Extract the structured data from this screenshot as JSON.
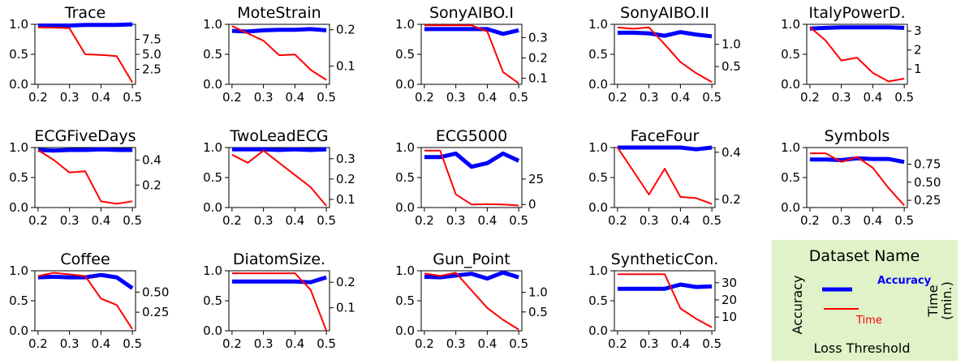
{
  "chart_data": [
    {
      "type": "line",
      "title": "Trace",
      "x": [
        0.2,
        0.25,
        0.3,
        0.35,
        0.4,
        0.45,
        0.5
      ],
      "xticks": [
        "0.2",
        "0.3",
        "0.4",
        "0.5"
      ],
      "xlim": [
        0.19,
        0.51
      ],
      "yticks_left": [
        "0.0",
        "0.5",
        "1.0"
      ],
      "ylim_left": [
        0,
        1
      ],
      "yticks_right": [
        "2.5",
        "5.0",
        "7.5"
      ],
      "ylim_right": [
        0,
        10
      ],
      "series": [
        {
          "name": "Accuracy",
          "axis": "left",
          "color": "#0000ff",
          "values": [
            0.98,
            0.98,
            0.98,
            0.99,
            0.99,
            0.99,
            1.0
          ]
        },
        {
          "name": "Time",
          "axis": "right",
          "color": "#ff0000",
          "values": [
            9.5,
            9.45,
            9.35,
            5.0,
            4.9,
            4.7,
            0.3
          ]
        }
      ]
    },
    {
      "type": "line",
      "title": "MoteStrain",
      "x": [
        0.2,
        0.25,
        0.3,
        0.35,
        0.4,
        0.45,
        0.5
      ],
      "xticks": [
        "0.2",
        "0.3",
        "0.4",
        "0.5"
      ],
      "xlim": [
        0.19,
        0.51
      ],
      "yticks_left": [
        "0.0",
        "0.5",
        "1.0"
      ],
      "ylim_left": [
        0,
        1
      ],
      "yticks_right": [
        "0.1",
        "0.2"
      ],
      "ylim_right": [
        0.05,
        0.215
      ],
      "series": [
        {
          "name": "Accuracy",
          "axis": "left",
          "color": "#0000ff",
          "values": [
            0.89,
            0.88,
            0.9,
            0.91,
            0.91,
            0.92,
            0.9
          ]
        },
        {
          "name": "Time",
          "axis": "right",
          "color": "#ff0000",
          "values": [
            0.21,
            0.19,
            0.17,
            0.13,
            0.132,
            0.09,
            0.062
          ]
        }
      ]
    },
    {
      "type": "line",
      "title": "SonyAIBO.I",
      "x": [
        0.2,
        0.25,
        0.3,
        0.35,
        0.4,
        0.45,
        0.5
      ],
      "xticks": [
        "0.2",
        "0.3",
        "0.4",
        "0.5"
      ],
      "xlim": [
        0.19,
        0.51
      ],
      "yticks_left": [
        "0.0",
        "0.5",
        "1.0"
      ],
      "ylim_left": [
        0,
        1
      ],
      "yticks_right": [
        "0.1",
        "0.2",
        "0.3"
      ],
      "ylim_right": [
        0.07,
        0.365
      ],
      "series": [
        {
          "name": "Accuracy",
          "axis": "left",
          "color": "#0000ff",
          "values": [
            0.92,
            0.92,
            0.92,
            0.92,
            0.92,
            0.84,
            0.9
          ]
        },
        {
          "name": "Time",
          "axis": "right",
          "color": "#ff0000",
          "values": [
            0.36,
            0.36,
            0.36,
            0.36,
            0.33,
            0.13,
            0.075
          ]
        }
      ]
    },
    {
      "type": "line",
      "title": "SonyAIBO.II",
      "x": [
        0.2,
        0.25,
        0.3,
        0.35,
        0.4,
        0.45,
        0.5
      ],
      "xticks": [
        "0.2",
        "0.3",
        "0.4",
        "0.5"
      ],
      "xlim": [
        0.19,
        0.51
      ],
      "yticks_left": [
        "0.0",
        "0.5",
        "1.0"
      ],
      "ylim_left": [
        0,
        1
      ],
      "yticks_right": [
        "0.5",
        "1.0"
      ],
      "ylim_right": [
        0.1,
        1.45
      ],
      "series": [
        {
          "name": "Accuracy",
          "axis": "left",
          "color": "#0000ff",
          "values": [
            0.86,
            0.86,
            0.85,
            0.81,
            0.87,
            0.83,
            0.8
          ]
        },
        {
          "name": "Time",
          "axis": "right",
          "color": "#ff0000",
          "values": [
            1.38,
            1.35,
            1.38,
            1.0,
            0.6,
            0.35,
            0.15
          ]
        }
      ]
    },
    {
      "type": "line",
      "title": "ItalyPowerD.",
      "x": [
        0.2,
        0.25,
        0.3,
        0.35,
        0.4,
        0.45,
        0.5
      ],
      "xticks": [
        "0.2",
        "0.3",
        "0.4",
        "0.5"
      ],
      "xlim": [
        0.19,
        0.51
      ],
      "yticks_left": [
        "0.0",
        "0.5",
        "1.0"
      ],
      "ylim_left": [
        0,
        1
      ],
      "yticks_right": [
        "1",
        "2",
        "3"
      ],
      "ylim_right": [
        0.2,
        3.35
      ],
      "series": [
        {
          "name": "Accuracy",
          "axis": "left",
          "color": "#0000ff",
          "values": [
            0.93,
            0.94,
            0.95,
            0.95,
            0.95,
            0.95,
            0.94
          ]
        },
        {
          "name": "Time",
          "axis": "right",
          "color": "#ff0000",
          "values": [
            3.2,
            2.5,
            1.45,
            1.6,
            0.8,
            0.35,
            0.5
          ]
        }
      ]
    },
    {
      "type": "line",
      "title": "ECGFiveDays",
      "x": [
        0.2,
        0.25,
        0.3,
        0.35,
        0.4,
        0.45,
        0.5
      ],
      "xticks": [
        "0.2",
        "0.3",
        "0.4",
        "0.5"
      ],
      "xlim": [
        0.19,
        0.51
      ],
      "yticks_left": [
        "0.0",
        "0.5",
        "1.0"
      ],
      "ylim_left": [
        0,
        1
      ],
      "yticks_right": [
        "0.2",
        "0.4"
      ],
      "ylim_right": [
        0.02,
        0.5
      ],
      "series": [
        {
          "name": "Accuracy",
          "axis": "left",
          "color": "#0000ff",
          "values": [
            0.96,
            0.95,
            0.96,
            0.96,
            0.97,
            0.96,
            0.96
          ]
        },
        {
          "name": "Time",
          "axis": "right",
          "color": "#ff0000",
          "values": [
            0.48,
            0.4,
            0.3,
            0.31,
            0.07,
            0.05,
            0.07
          ]
        }
      ]
    },
    {
      "type": "line",
      "title": "TwoLeadECG",
      "x": [
        0.2,
        0.25,
        0.3,
        0.35,
        0.4,
        0.45,
        0.5
      ],
      "xticks": [
        "0.2",
        "0.3",
        "0.4",
        "0.5"
      ],
      "xlim": [
        0.19,
        0.51
      ],
      "yticks_left": [
        "0.0",
        "0.5",
        "1.0"
      ],
      "ylim_left": [
        0,
        1
      ],
      "yticks_right": [
        "0.1",
        "0.2",
        "0.3"
      ],
      "ylim_right": [
        0.06,
        0.355
      ],
      "series": [
        {
          "name": "Accuracy",
          "axis": "left",
          "color": "#0000ff",
          "values": [
            0.97,
            0.97,
            0.97,
            0.96,
            0.97,
            0.96,
            0.97
          ]
        },
        {
          "name": "Time",
          "axis": "right",
          "color": "#ff0000",
          "values": [
            0.32,
            0.28,
            0.34,
            0.28,
            0.22,
            0.16,
            0.068
          ]
        }
      ]
    },
    {
      "type": "line",
      "title": "ECG5000",
      "x": [
        0.2,
        0.25,
        0.3,
        0.35,
        0.4,
        0.45,
        0.5
      ],
      "xticks": [
        "0.2",
        "0.3",
        "0.4",
        "0.5"
      ],
      "xlim": [
        0.19,
        0.51
      ],
      "yticks_left": [
        "0.0",
        "0.5",
        "1.0"
      ],
      "ylim_left": [
        0,
        1
      ],
      "yticks_right": [
        "0",
        "25"
      ],
      "ylim_right": [
        -3,
        56
      ],
      "series": [
        {
          "name": "Accuracy",
          "axis": "left",
          "color": "#0000ff",
          "values": [
            0.84,
            0.84,
            0.9,
            0.68,
            0.74,
            0.9,
            0.78
          ]
        },
        {
          "name": "Time",
          "axis": "right",
          "color": "#ff0000",
          "values": [
            53,
            53,
            10,
            0,
            0.3,
            0,
            -1
          ]
        }
      ]
    },
    {
      "type": "line",
      "title": "FaceFour",
      "x": [
        0.2,
        0.25,
        0.3,
        0.35,
        0.4,
        0.45,
        0.5
      ],
      "xticks": [
        "0.2",
        "0.3",
        "0.4",
        "0.5"
      ],
      "xlim": [
        0.19,
        0.51
      ],
      "yticks_left": [
        "0.0",
        "0.5",
        "1.0"
      ],
      "ylim_left": [
        0,
        1
      ],
      "yticks_right": [
        "0.2",
        "0.4"
      ],
      "ylim_right": [
        0.165,
        0.42
      ],
      "series": [
        {
          "name": "Accuracy",
          "axis": "left",
          "color": "#0000ff",
          "values": [
            1.0,
            1.0,
            1.0,
            1.0,
            1.0,
            0.97,
            1.0
          ]
        },
        {
          "name": "Time",
          "axis": "right",
          "color": "#ff0000",
          "values": [
            0.42,
            0.32,
            0.22,
            0.33,
            0.21,
            0.205,
            0.18
          ]
        }
      ]
    },
    {
      "type": "line",
      "title": "Symbols",
      "x": [
        0.2,
        0.25,
        0.3,
        0.35,
        0.4,
        0.45,
        0.5
      ],
      "xticks": [
        "0.2",
        "0.3",
        "0.4",
        "0.5"
      ],
      "xlim": [
        0.19,
        0.51
      ],
      "yticks_left": [
        "0.0",
        "0.5",
        "1.0"
      ],
      "ylim_left": [
        0,
        1
      ],
      "yticks_right": [
        "0.25",
        "0.50",
        "0.75"
      ],
      "ylim_right": [
        0.15,
        0.98
      ],
      "series": [
        {
          "name": "Accuracy",
          "axis": "left",
          "color": "#0000ff",
          "values": [
            0.8,
            0.8,
            0.79,
            0.82,
            0.81,
            0.81,
            0.76
          ]
        },
        {
          "name": "Time",
          "axis": "right",
          "color": "#ff0000",
          "values": [
            0.9,
            0.9,
            0.78,
            0.85,
            0.7,
            0.42,
            0.18
          ]
        }
      ]
    },
    {
      "type": "line",
      "title": "Coffee",
      "x": [
        0.2,
        0.25,
        0.3,
        0.35,
        0.4,
        0.45,
        0.5
      ],
      "xticks": [
        "0.2",
        "0.3",
        "0.4",
        "0.5"
      ],
      "xlim": [
        0.19,
        0.51
      ],
      "yticks_left": [
        "0.0",
        "0.5",
        "1.0"
      ],
      "ylim_left": [
        0,
        1
      ],
      "yticks_right": [
        "0.25",
        "0.50"
      ],
      "ylim_right": [
        0.02,
        0.765
      ],
      "series": [
        {
          "name": "Accuracy",
          "axis": "left",
          "color": "#0000ff",
          "values": [
            0.89,
            0.9,
            0.89,
            0.89,
            0.93,
            0.89,
            0.71
          ]
        },
        {
          "name": "Time",
          "axis": "right",
          "color": "#ff0000",
          "values": [
            0.7,
            0.74,
            0.72,
            0.7,
            0.42,
            0.34,
            0.04
          ]
        }
      ]
    },
    {
      "type": "line",
      "title": "DiatomSize.",
      "x": [
        0.2,
        0.25,
        0.3,
        0.35,
        0.4,
        0.45,
        0.5
      ],
      "xticks": [
        "0.2",
        "0.3",
        "0.4",
        "0.5"
      ],
      "xlim": [
        0.19,
        0.51
      ],
      "yticks_left": [
        "0.0",
        "0.5",
        "1.0"
      ],
      "ylim_left": [
        0,
        1
      ],
      "yticks_right": [
        "0.1",
        "0.2"
      ],
      "ylim_right": [
        0.01,
        0.245
      ],
      "series": [
        {
          "name": "Accuracy",
          "axis": "left",
          "color": "#0000ff",
          "values": [
            0.82,
            0.82,
            0.82,
            0.82,
            0.82,
            0.81,
            0.89
          ]
        },
        {
          "name": "Time",
          "axis": "right",
          "color": "#ff0000",
          "values": [
            0.235,
            0.235,
            0.235,
            0.235,
            0.235,
            0.17,
            0.01
          ]
        }
      ]
    },
    {
      "type": "line",
      "title": "Gun_Point",
      "x": [
        0.2,
        0.25,
        0.3,
        0.35,
        0.4,
        0.45,
        0.5
      ],
      "xticks": [
        "0.2",
        "0.3",
        "0.4",
        "0.5"
      ],
      "xlim": [
        0.19,
        0.51
      ],
      "yticks_left": [
        "0.0",
        "0.5",
        "1.0"
      ],
      "ylim_left": [
        0,
        1
      ],
      "yticks_right": [
        "0.5",
        "1.0"
      ],
      "ylim_right": [
        0.02,
        1.55
      ],
      "series": [
        {
          "name": "Accuracy",
          "axis": "left",
          "color": "#0000ff",
          "values": [
            0.9,
            0.89,
            0.92,
            0.95,
            0.87,
            0.97,
            0.89
          ]
        },
        {
          "name": "Time",
          "axis": "right",
          "color": "#ff0000",
          "values": [
            1.48,
            1.42,
            1.5,
            1.05,
            0.6,
            0.3,
            0.05
          ]
        }
      ]
    },
    {
      "type": "line",
      "title": "SyntheticCon.",
      "x": [
        0.2,
        0.25,
        0.3,
        0.35,
        0.4,
        0.45,
        0.5
      ],
      "xticks": [
        "0.2",
        "0.3",
        "0.4",
        "0.5"
      ],
      "xlim": [
        0.19,
        0.51
      ],
      "yticks_left": [
        "0.0",
        "0.5",
        "1.0"
      ],
      "ylim_left": [
        0,
        1
      ],
      "yticks_right": [
        "10",
        "20",
        "30"
      ],
      "ylim_right": [
        2,
        37
      ],
      "series": [
        {
          "name": "Accuracy",
          "axis": "left",
          "color": "#0000ff",
          "values": [
            0.7,
            0.7,
            0.7,
            0.7,
            0.77,
            0.73,
            0.74
          ]
        },
        {
          "name": "Time",
          "axis": "right",
          "color": "#ff0000",
          "values": [
            35,
            35,
            35,
            35,
            15,
            9,
            4
          ]
        }
      ]
    }
  ],
  "legend": {
    "title": "Dataset Name",
    "accuracy_label": "Accuracy",
    "time_label": "Time",
    "left_axis_label": "Accuracy",
    "right_axis_label_line1": "Time",
    "right_axis_label_line2": "(min.)",
    "bottom_label": "Loss Threshold",
    "background": "#dff2c8",
    "accuracy_color": "#0000ff",
    "time_color": "#ff0000"
  }
}
